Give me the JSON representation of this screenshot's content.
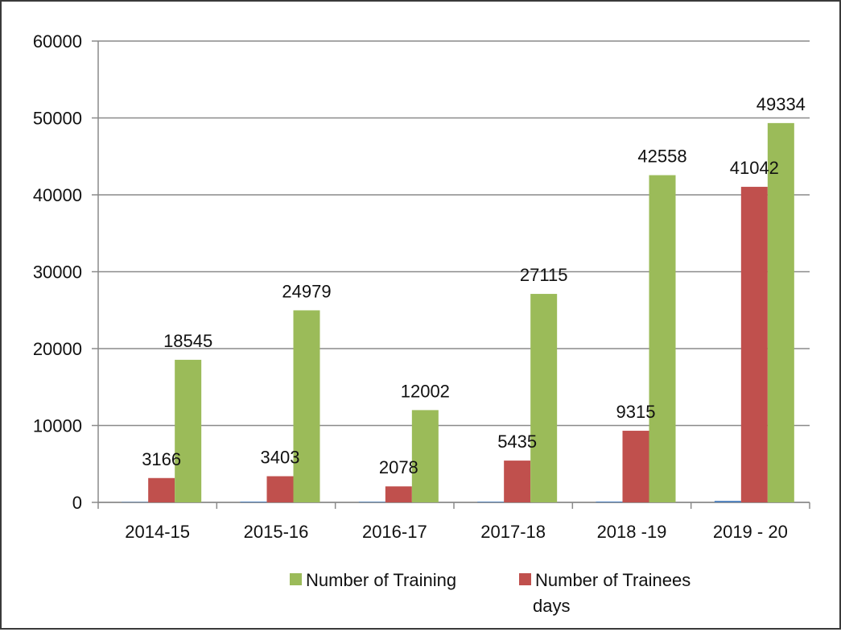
{
  "chart_data": {
    "type": "bar",
    "title": "",
    "xlabel": "",
    "ylabel": "",
    "categories": [
      "2014-15",
      "2015-16",
      "2016-17",
      "2017-18",
      "2018 -19",
      "2019 - 20"
    ],
    "series": [
      {
        "name": "",
        "color": "#4f81bd",
        "values": [
          50,
          100,
          80,
          90,
          110,
          200
        ],
        "show_labels": false
      },
      {
        "name": "Number of Trainees days",
        "color": "#c0504d",
        "values": [
          3166,
          3403,
          2078,
          5435,
          9315,
          41042
        ],
        "show_labels": true
      },
      {
        "name": "Number of Training",
        "color": "#9bbb59",
        "values": [
          18545,
          24979,
          12002,
          27115,
          42558,
          49334
        ],
        "show_labels": true
      }
    ],
    "ylim": [
      0,
      60000
    ],
    "yticks": [
      0,
      10000,
      20000,
      30000,
      40000,
      50000,
      60000
    ],
    "grid": true,
    "legend": {
      "placement": "bottom",
      "items": [
        {
          "label": "Number of Training",
          "color": "#9bbb59"
        },
        {
          "label_lines": [
            "Number of Trainees",
            "days"
          ],
          "color": "#c0504d"
        }
      ]
    }
  }
}
